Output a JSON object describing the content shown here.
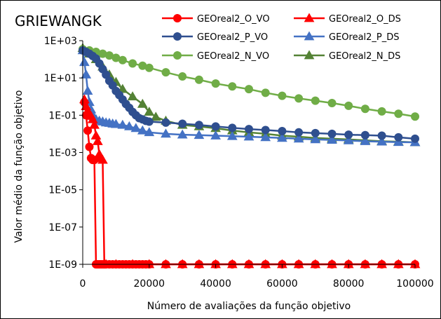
{
  "chart_data": {
    "type": "line",
    "title": "GRIEWANGK",
    "xlabel": "Número de avaliações da função objetivo",
    "ylabel": "Valor médio da função objetivo",
    "xlim": [
      0,
      100000
    ],
    "ylim": [
      1e-09,
      1000
    ],
    "y_scale": "log",
    "grid": false,
    "legend_position": "top-right",
    "x_ticks": [
      0,
      20000,
      40000,
      60000,
      80000,
      100000
    ],
    "x_tick_labels": [
      "0",
      "20000",
      "40000",
      "60000",
      "80000",
      "100000"
    ],
    "y_ticks": [
      1e-09,
      1e-07,
      1e-05,
      0.001,
      0.1,
      10,
      1000
    ],
    "y_tick_labels": [
      "1E-09",
      "1E-07",
      "1E-05",
      "1E-03",
      "1E-01",
      "1E+01",
      "1E+03"
    ],
    "series": [
      {
        "name": "GEOreal2_O_VO",
        "color": "#ff0000",
        "marker": "circle",
        "x": [
          500,
          1000,
          1500,
          2000,
          2500,
          3000,
          3500,
          4000,
          4500,
          5000,
          5500,
          6000,
          6500,
          7000,
          8000,
          9000,
          10000,
          11000,
          12000,
          13000,
          14000,
          15000,
          16000,
          17000,
          18000,
          19000,
          20000,
          25000,
          30000,
          35000,
          40000,
          45000,
          50000,
          55000,
          60000,
          65000,
          70000,
          75000,
          80000,
          85000,
          90000,
          95000,
          100000
        ],
        "y": [
          0.5,
          0.1,
          0.015,
          0.002,
          0.0005,
          0.0004,
          0.0004,
          1e-09,
          1e-09,
          1e-09,
          1e-09,
          1e-09,
          1e-09,
          1e-09,
          1e-09,
          1e-09,
          1e-09,
          1e-09,
          1e-09,
          1e-09,
          1e-09,
          1e-09,
          1e-09,
          1e-09,
          1e-09,
          1e-09,
          1e-09,
          1e-09,
          1e-09,
          1e-09,
          1e-09,
          1e-09,
          1e-09,
          1e-09,
          1e-09,
          1e-09,
          1e-09,
          1e-09,
          1e-09,
          1e-09,
          1e-09,
          1e-09,
          1e-09
        ]
      },
      {
        "name": "GEOreal2_O_DS",
        "color": "#ff0000",
        "marker": "triangle",
        "x": [
          500,
          1000,
          1500,
          2000,
          2500,
          3000,
          3500,
          4000,
          4500,
          5000,
          5500,
          6000,
          6500,
          7000,
          10000,
          15000,
          20000,
          25000,
          30000,
          35000,
          40000,
          45000,
          50000,
          55000,
          60000,
          65000,
          70000,
          75000,
          80000,
          85000,
          90000,
          95000,
          100000
        ],
        "y": [
          0.7,
          0.3,
          0.15,
          0.12,
          0.09,
          0.06,
          0.03,
          0.008,
          0.004,
          0.0008,
          0.0005,
          0.0004,
          1e-09,
          1e-09,
          1e-09,
          1e-09,
          1e-09,
          1e-09,
          1e-09,
          1e-09,
          1e-09,
          1e-09,
          1e-09,
          1e-09,
          1e-09,
          1e-09,
          1e-09,
          1e-09,
          1e-09,
          1e-09,
          1e-09,
          1e-09,
          1e-09
        ]
      },
      {
        "name": "GEOreal2_P_VO",
        "color": "#2f4f8f",
        "marker": "circle",
        "x": [
          0,
          1000,
          2000,
          3000,
          4000,
          5000,
          6000,
          7000,
          8000,
          9000,
          10000,
          11000,
          12000,
          13000,
          14000,
          15000,
          16000,
          17000,
          18000,
          19000,
          20000,
          25000,
          30000,
          35000,
          40000,
          45000,
          50000,
          55000,
          60000,
          65000,
          70000,
          75000,
          80000,
          85000,
          90000,
          95000,
          100000
        ],
        "y": [
          300,
          250,
          200,
          150,
          110,
          60,
          30,
          15,
          7,
          4,
          2,
          1.2,
          0.7,
          0.4,
          0.25,
          0.15,
          0.1,
          0.07,
          0.06,
          0.05,
          0.045,
          0.04,
          0.035,
          0.03,
          0.025,
          0.021,
          0.018,
          0.016,
          0.014,
          0.012,
          0.011,
          0.01,
          0.009,
          0.0085,
          0.008,
          0.0065,
          0.0055
        ]
      },
      {
        "name": "GEOreal2_P_DS",
        "color": "#4472c4",
        "marker": "triangle",
        "x": [
          0,
          500,
          1000,
          1500,
          2000,
          2500,
          3000,
          3500,
          4000,
          5000,
          6000,
          7000,
          8000,
          9000,
          10000,
          12000,
          14000,
          16000,
          18000,
          20000,
          25000,
          30000,
          35000,
          40000,
          45000,
          50000,
          55000,
          60000,
          65000,
          70000,
          75000,
          80000,
          85000,
          90000,
          95000,
          100000
        ],
        "y": [
          300,
          70,
          15,
          2,
          0.5,
          0.2,
          0.1,
          0.07,
          0.06,
          0.05,
          0.045,
          0.04,
          0.038,
          0.035,
          0.033,
          0.03,
          0.025,
          0.02,
          0.015,
          0.012,
          0.01,
          0.009,
          0.0085,
          0.008,
          0.0075,
          0.007,
          0.0065,
          0.006,
          0.0055,
          0.005,
          0.0047,
          0.0044,
          0.004,
          0.0038,
          0.0036,
          0.0035
        ]
      },
      {
        "name": "GEOreal2_N_VO",
        "color": "#70ad47",
        "marker": "circle",
        "x": [
          0,
          2000,
          4000,
          6000,
          8000,
          10000,
          12000,
          15000,
          18000,
          20000,
          25000,
          30000,
          35000,
          40000,
          45000,
          50000,
          55000,
          60000,
          65000,
          70000,
          75000,
          80000,
          85000,
          90000,
          95000,
          100000
        ],
        "y": [
          350,
          300,
          250,
          200,
          160,
          120,
          90,
          60,
          45,
          35,
          20,
          12,
          8,
          5,
          3.5,
          2.5,
          1.6,
          1.1,
          0.8,
          0.6,
          0.45,
          0.32,
          0.22,
          0.16,
          0.12,
          0.085
        ]
      },
      {
        "name": "GEOreal2_N_DS",
        "color": "#548235",
        "marker": "triangle",
        "x": [
          0,
          2000,
          4000,
          6000,
          8000,
          10000,
          12000,
          15000,
          18000,
          20000,
          22000,
          25000,
          30000,
          35000,
          40000,
          45000,
          50000,
          55000,
          60000,
          65000,
          70000,
          75000,
          80000,
          85000,
          90000,
          95000,
          100000
        ],
        "y": [
          400,
          200,
          100,
          40,
          15,
          6,
          2.5,
          1,
          0.4,
          0.15,
          0.08,
          0.05,
          0.03,
          0.025,
          0.02,
          0.015,
          0.012,
          0.01,
          0.008,
          0.007,
          0.006,
          0.0055,
          0.005,
          0.0045,
          0.004,
          0.0038,
          0.0035
        ]
      }
    ]
  }
}
